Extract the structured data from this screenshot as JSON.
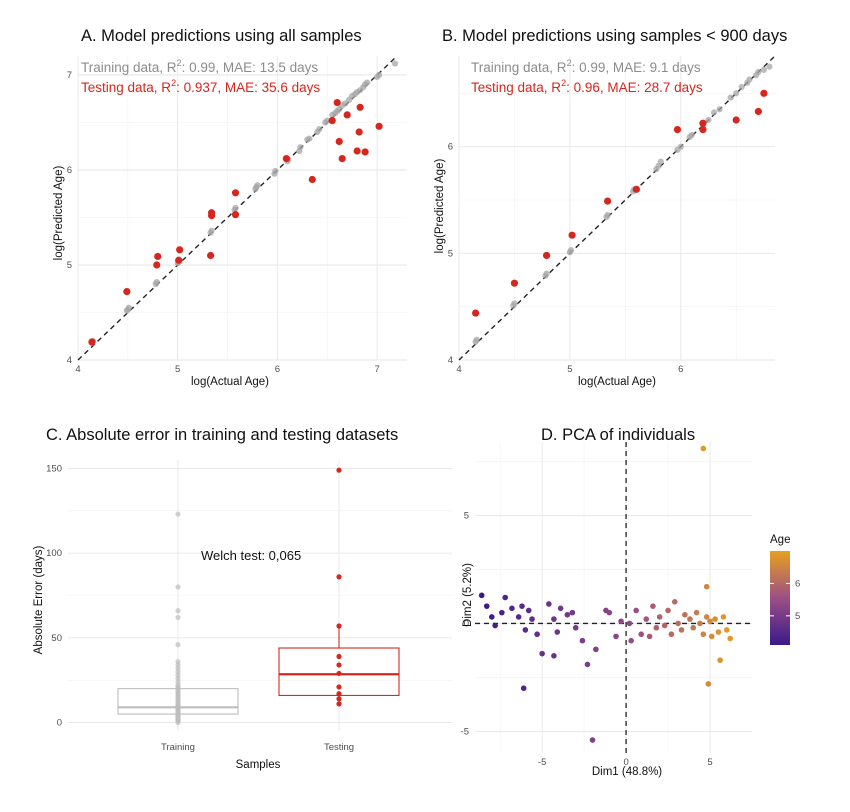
{
  "chart_data": [
    {
      "id": "A",
      "type": "scatter",
      "title": "A. Model predictions using all samples",
      "xlabel": "log(Actual Age)",
      "ylabel": "log(Predicted Age)",
      "xlim": [
        4,
        7.3
      ],
      "ylim": [
        4,
        7.2
      ],
      "xticks": [
        4,
        5,
        6,
        7
      ],
      "yticks": [
        4,
        5,
        6,
        7
      ],
      "reference_line": "y = x (dashed)",
      "annotations": {
        "train_prefix": "Training data, R",
        "train_sup": "2",
        "train_suffix": ": 0.99, MAE: 13.5 days",
        "test_prefix": "Testing data, R",
        "test_sup": "2",
        "test_suffix": ": 0.937, MAE: 35.6 days"
      },
      "series": [
        {
          "name": "Training data",
          "color": "#a6a6a6",
          "points": [
            [
              4.14,
              4.18
            ],
            [
              4.15,
              4.2
            ],
            [
              4.49,
              4.52
            ],
            [
              4.5,
              4.53
            ],
            [
              4.51,
              4.55
            ],
            [
              4.78,
              4.8
            ],
            [
              4.79,
              4.82
            ],
            [
              5.0,
              5.02
            ],
            [
              5.01,
              5.03
            ],
            [
              5.02,
              5.04
            ],
            [
              5.33,
              5.34
            ],
            [
              5.34,
              5.36
            ],
            [
              5.57,
              5.58
            ],
            [
              5.58,
              5.6
            ],
            [
              5.78,
              5.8
            ],
            [
              5.79,
              5.82
            ],
            [
              5.8,
              5.84
            ],
            [
              5.97,
              5.96
            ],
            [
              5.98,
              5.99
            ],
            [
              6.1,
              6.09
            ],
            [
              6.11,
              6.11
            ],
            [
              6.22,
              6.2
            ],
            [
              6.23,
              6.24
            ],
            [
              6.3,
              6.32
            ],
            [
              6.32,
              6.33
            ],
            [
              6.4,
              6.4
            ],
            [
              6.42,
              6.43
            ],
            [
              6.48,
              6.5
            ],
            [
              6.5,
              6.52
            ],
            [
              6.55,
              6.58
            ],
            [
              6.58,
              6.6
            ],
            [
              6.6,
              6.62
            ],
            [
              6.62,
              6.64
            ],
            [
              6.65,
              6.68
            ],
            [
              6.68,
              6.7
            ],
            [
              6.72,
              6.74
            ],
            [
              6.75,
              6.78
            ],
            [
              6.78,
              6.8
            ],
            [
              6.8,
              6.82
            ],
            [
              6.83,
              6.84
            ],
            [
              6.86,
              6.87
            ],
            [
              6.88,
              6.9
            ],
            [
              6.9,
              6.92
            ],
            [
              7.0,
              6.98
            ],
            [
              7.02,
              7.0
            ],
            [
              7.18,
              7.12
            ]
          ]
        },
        {
          "name": "Testing data",
          "color": "#d7261e",
          "points": [
            [
              4.14,
              4.19
            ],
            [
              4.49,
              4.72
            ],
            [
              4.79,
              5.0
            ],
            [
              4.8,
              5.09
            ],
            [
              5.01,
              5.05
            ],
            [
              5.02,
              5.16
            ],
            [
              5.33,
              5.1
            ],
            [
              5.34,
              5.52
            ],
            [
              5.34,
              5.55
            ],
            [
              5.58,
              5.76
            ],
            [
              5.58,
              5.53
            ],
            [
              6.09,
              6.12
            ],
            [
              6.35,
              5.9
            ],
            [
              6.55,
              6.52
            ],
            [
              6.6,
              6.71
            ],
            [
              6.62,
              6.3
            ],
            [
              6.65,
              6.12
            ],
            [
              6.7,
              6.58
            ],
            [
              6.8,
              6.2
            ],
            [
              6.82,
              6.4
            ],
            [
              6.83,
              6.66
            ],
            [
              6.88,
              6.19
            ],
            [
              7.02,
              6.46
            ]
          ]
        }
      ]
    },
    {
      "id": "B",
      "type": "scatter",
      "title": "B. Model predictions using samples < 900 days",
      "xlabel": "log(Actual Age)",
      "ylabel": "log(Predicted Age)",
      "xlim": [
        4,
        6.85
      ],
      "ylim": [
        4,
        6.85
      ],
      "xticks": [
        4,
        5,
        6
      ],
      "yticks": [
        4,
        5,
        6
      ],
      "reference_line": "y = x (dashed)",
      "annotations": {
        "train_prefix": "Training data, R",
        "train_sup": "2",
        "train_suffix": ": 0.99, MAE: 9.1 days",
        "test_prefix": "Testing data, R",
        "test_sup": "2",
        "test_suffix": ": 0.96, MAE: 28.7 days"
      },
      "series": [
        {
          "name": "Training data",
          "color": "#a6a6a6",
          "points": [
            [
              4.15,
              4.17
            ],
            [
              4.16,
              4.19
            ],
            [
              4.49,
              4.51
            ],
            [
              4.5,
              4.53
            ],
            [
              4.78,
              4.79
            ],
            [
              4.79,
              4.81
            ],
            [
              5.0,
              5.01
            ],
            [
              5.01,
              5.03
            ],
            [
              5.33,
              5.34
            ],
            [
              5.34,
              5.36
            ],
            [
              5.57,
              5.58
            ],
            [
              5.58,
              5.6
            ],
            [
              5.78,
              5.79
            ],
            [
              5.8,
              5.82
            ],
            [
              5.82,
              5.86
            ],
            [
              5.97,
              5.97
            ],
            [
              6.0,
              6.0
            ],
            [
              6.08,
              6.09
            ],
            [
              6.1,
              6.11
            ],
            [
              6.2,
              6.2
            ],
            [
              6.25,
              6.25
            ],
            [
              6.3,
              6.32
            ],
            [
              6.35,
              6.35
            ],
            [
              6.45,
              6.46
            ],
            [
              6.5,
              6.5
            ],
            [
              6.55,
              6.56
            ],
            [
              6.6,
              6.6
            ],
            [
              6.62,
              6.63
            ],
            [
              6.68,
              6.67
            ],
            [
              6.7,
              6.7
            ],
            [
              6.75,
              6.72
            ],
            [
              6.8,
              6.75
            ]
          ]
        },
        {
          "name": "Testing data",
          "color": "#d7261e",
          "points": [
            [
              4.15,
              4.44
            ],
            [
              4.5,
              4.72
            ],
            [
              4.79,
              4.98
            ],
            [
              5.02,
              5.17
            ],
            [
              5.34,
              5.49
            ],
            [
              5.6,
              5.6
            ],
            [
              5.97,
              6.16
            ],
            [
              6.2,
              6.16
            ],
            [
              6.2,
              6.22
            ],
            [
              6.5,
              6.25
            ],
            [
              6.7,
              6.33
            ],
            [
              6.75,
              6.5
            ]
          ]
        }
      ]
    },
    {
      "id": "C",
      "type": "box",
      "title": "C. Absolute error in training and testing datasets",
      "xlabel": "Samples",
      "ylabel": "Absolute Error (days)",
      "ylim": [
        -5,
        155
      ],
      "yticks": [
        0,
        50,
        100,
        150
      ],
      "annotation": "Welch test: 0,065",
      "categories": [
        "Training",
        "Testing"
      ],
      "boxes": [
        {
          "name": "Training",
          "color": "#bdbdbd",
          "q1": 5,
          "median": 9,
          "q3": 20,
          "whisker_low": 0,
          "whisker_high": 36,
          "points": [
            0,
            1,
            1,
            2,
            2,
            3,
            3,
            4,
            4,
            5,
            5,
            6,
            6,
            7,
            7,
            8,
            8,
            9,
            9,
            10,
            10,
            11,
            12,
            13,
            14,
            15,
            16,
            17,
            18,
            19,
            20,
            21,
            22,
            24,
            26,
            28,
            30,
            32,
            34,
            36,
            46,
            62,
            66,
            80,
            123
          ]
        },
        {
          "name": "Testing",
          "color": "#d7261e",
          "q1": 16,
          "median": 28.5,
          "q3": 44,
          "whisker_low": 11,
          "whisker_high": 57,
          "points": [
            11,
            14,
            17,
            21,
            29,
            34,
            39,
            57,
            86,
            149
          ]
        }
      ]
    },
    {
      "id": "D",
      "type": "scatter",
      "title": "D. PCA of individuals",
      "xlabel": "Dim1 (48.8%)",
      "ylabel": "Dim2 (5.2%)",
      "xlim": [
        -9,
        7.5
      ],
      "ylim": [
        -6,
        8.4
      ],
      "xticks": [
        -5,
        0,
        5
      ],
      "yticks": [
        -5,
        0,
        5
      ],
      "legend": {
        "title": "Age",
        "ticks": [
          5,
          6
        ],
        "range": [
          4.1,
          7.0
        ],
        "colors": [
          "#3a1a8a",
          "#9c4f86",
          "#e8a01e"
        ],
        "placement": "right"
      },
      "points": [
        [
          -8.6,
          1.3,
          4.1
        ],
        [
          -8.3,
          0.8,
          4.15
        ],
        [
          -8.0,
          0.3,
          4.2
        ],
        [
          -7.8,
          -0.1,
          4.25
        ],
        [
          -7.4,
          0.5,
          4.3
        ],
        [
          -7.2,
          1.2,
          4.35
        ],
        [
          -6.8,
          0.7,
          4.45
        ],
        [
          -6.4,
          0.3,
          4.5
        ],
        [
          -6.2,
          0.8,
          4.55
        ],
        [
          -6.0,
          -0.3,
          4.55
        ],
        [
          -5.8,
          0.6,
          4.6
        ],
        [
          -5.6,
          0.2,
          4.65
        ],
        [
          -5.3,
          -0.5,
          4.7
        ],
        [
          -6.1,
          -3.0,
          4.5
        ],
        [
          -5.0,
          -1.4,
          4.75
        ],
        [
          -4.6,
          0.9,
          4.8
        ],
        [
          -4.3,
          0.2,
          4.85
        ],
        [
          -4.1,
          -0.4,
          4.85
        ],
        [
          -4.3,
          -1.5,
          4.8
        ],
        [
          -3.9,
          0.7,
          4.9
        ],
        [
          -3.5,
          0.4,
          4.95
        ],
        [
          -3.2,
          0.5,
          4.95
        ],
        [
          -3.0,
          -0.2,
          5.0
        ],
        [
          -2.6,
          -0.8,
          5.05
        ],
        [
          -2.3,
          -1.9,
          5.05
        ],
        [
          -1.8,
          -1.2,
          5.15
        ],
        [
          -2.0,
          -5.4,
          5.1
        ],
        [
          -1.2,
          0.6,
          5.2
        ],
        [
          -1.0,
          0.5,
          5.25
        ],
        [
          -0.6,
          -0.6,
          5.3
        ],
        [
          -0.3,
          0.1,
          5.35
        ],
        [
          0.2,
          0.0,
          5.4
        ],
        [
          0.3,
          -0.8,
          5.45
        ],
        [
          0.6,
          0.6,
          5.5
        ],
        [
          0.9,
          -0.5,
          5.6
        ],
        [
          1.2,
          0.2,
          5.7
        ],
        [
          1.4,
          -0.6,
          5.75
        ],
        [
          1.6,
          0.8,
          5.8
        ],
        [
          1.8,
          -0.2,
          5.85
        ],
        [
          2.0,
          0.3,
          5.9
        ],
        [
          2.3,
          -0.1,
          5.95
        ],
        [
          2.5,
          0.6,
          6.0
        ],
        [
          2.7,
          -0.5,
          6.05
        ],
        [
          2.9,
          1.0,
          6.05
        ],
        [
          3.1,
          0.0,
          6.1
        ],
        [
          3.3,
          -0.3,
          6.15
        ],
        [
          3.5,
          0.4,
          6.2
        ],
        [
          3.8,
          0.2,
          6.25
        ],
        [
          4.0,
          -0.2,
          6.3
        ],
        [
          4.2,
          0.5,
          6.35
        ],
        [
          4.4,
          0.0,
          6.4
        ],
        [
          4.6,
          -0.5,
          6.5
        ],
        [
          4.8,
          0.3,
          6.55
        ],
        [
          5.0,
          0.1,
          6.6
        ],
        [
          5.1,
          -0.6,
          6.65
        ],
        [
          5.3,
          0.2,
          6.7
        ],
        [
          5.5,
          -0.4,
          6.75
        ],
        [
          5.6,
          -1.7,
          6.75
        ],
        [
          5.8,
          0.3,
          6.8
        ],
        [
          6.0,
          -0.3,
          6.85
        ],
        [
          6.2,
          -0.7,
          6.9
        ],
        [
          4.9,
          -2.8,
          6.6
        ],
        [
          4.8,
          1.7,
          6.55
        ],
        [
          4.6,
          8.1,
          6.9
        ]
      ]
    }
  ]
}
